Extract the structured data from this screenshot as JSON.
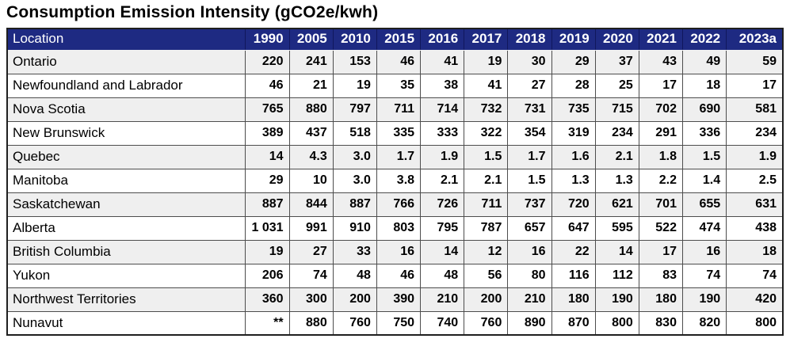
{
  "title": "Consumption Emission Intensity (gCO2e/kwh)",
  "colors": {
    "header_bg": "#1E2A82",
    "header_text": "#FFFFFF",
    "header_border": "#10175C",
    "row_bg": "#FFFFFF",
    "row_alt_bg": "#EFEFEF",
    "grid_line": "#4D4D4D",
    "outer_border": "#1F1F1F",
    "cell_text": "#000000",
    "title_text": "#000000"
  },
  "chart_data": {
    "type": "table",
    "title": "Consumption Emission Intensity (gCO2e/kwh)",
    "unit": "gCO2e/kwh",
    "columns": [
      "Location",
      "1990",
      "2005",
      "2010",
      "2015",
      "2016",
      "2017",
      "2018",
      "2019",
      "2020",
      "2021",
      "2022",
      "2023a"
    ],
    "rows": [
      [
        "Ontario",
        "220",
        "241",
        "153",
        "46",
        "41",
        "19",
        "30",
        "29",
        "37",
        "43",
        "49",
        "59"
      ],
      [
        "Newfoundland and Labrador",
        "46",
        "21",
        "19",
        "35",
        "38",
        "41",
        "27",
        "28",
        "25",
        "17",
        "18",
        "17"
      ],
      [
        "Nova Scotia",
        "765",
        "880",
        "797",
        "711",
        "714",
        "732",
        "731",
        "735",
        "715",
        "702",
        "690",
        "581"
      ],
      [
        "New Brunswick",
        "389",
        "437",
        "518",
        "335",
        "333",
        "322",
        "354",
        "319",
        "234",
        "291",
        "336",
        "234"
      ],
      [
        "Quebec",
        "14",
        "4.3",
        "3.0",
        "1.7",
        "1.9",
        "1.5",
        "1.7",
        "1.6",
        "2.1",
        "1.8",
        "1.5",
        "1.9"
      ],
      [
        "Manitoba",
        "29",
        "10",
        "3.0",
        "3.8",
        "2.1",
        "2.1",
        "1.5",
        "1.3",
        "1.3",
        "2.2",
        "1.4",
        "2.5"
      ],
      [
        "Saskatchewan",
        "887",
        "844",
        "887",
        "766",
        "726",
        "711",
        "737",
        "720",
        "621",
        "701",
        "655",
        "631"
      ],
      [
        "Alberta",
        "1 031",
        "991",
        "910",
        "803",
        "795",
        "787",
        "657",
        "647",
        "595",
        "522",
        "474",
        "438"
      ],
      [
        "British Columbia",
        "19",
        "27",
        "33",
        "16",
        "14",
        "12",
        "16",
        "22",
        "14",
        "17",
        "16",
        "18"
      ],
      [
        "Yukon",
        "206",
        "74",
        "48",
        "46",
        "48",
        "56",
        "80",
        "116",
        "112",
        "83",
        "74",
        "74"
      ],
      [
        "Northwest Territories",
        "360",
        "300",
        "200",
        "390",
        "210",
        "200",
        "210",
        "180",
        "190",
        "180",
        "190",
        "420"
      ],
      [
        "Nunavut",
        "**",
        "880",
        "760",
        "750",
        "740",
        "760",
        "890",
        "870",
        "800",
        "830",
        "820",
        "800"
      ]
    ]
  }
}
